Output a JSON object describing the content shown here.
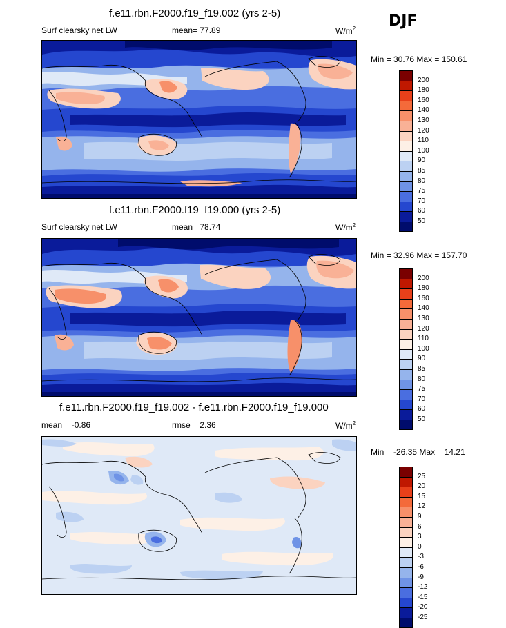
{
  "season": "DJF",
  "units_prefix": "W/m",
  "units_sup": "2",
  "panels": [
    {
      "title": "f.e11.rbn.F2000.f19_f19.002 (yrs 2-5)",
      "left_label": "Surf clearsky net LW",
      "center_label": "mean=  77.89",
      "minmax": "Min =  30.76 Max = 150.61",
      "kind": "field",
      "levels": [
        "200",
        "180",
        "160",
        "140",
        "130",
        "120",
        "110",
        "100",
        "90",
        "85",
        "80",
        "75",
        "70",
        "60",
        "50"
      ]
    },
    {
      "title": "f.e11.rbn.F2000.f19_f19.000 (yrs 2-5)",
      "left_label": "Surf clearsky net LW",
      "center_label": "mean=  78.74",
      "minmax": "Min =  32.96 Max = 157.70",
      "kind": "field",
      "levels": [
        "200",
        "180",
        "160",
        "140",
        "130",
        "120",
        "110",
        "100",
        "90",
        "85",
        "80",
        "75",
        "70",
        "60",
        "50"
      ]
    },
    {
      "title": "f.e11.rbn.F2000.f19_f19.002 - f.e11.rbn.F2000.f19_f19.000",
      "left_label": "mean =  -0.86",
      "center_label": "rmse =   2.36",
      "minmax": "Min = -26.35 Max =  14.21",
      "kind": "diff",
      "levels": [
        "25",
        "20",
        "15",
        "12",
        "9",
        "6",
        "3",
        "0",
        "-3",
        "-6",
        "-9",
        "-12",
        "-15",
        "-20",
        "-25"
      ]
    }
  ],
  "colors": {
    "field_scale": [
      "#7a0000",
      "#c01800",
      "#e8401a",
      "#f46a3a",
      "#f7906a",
      "#f9b196",
      "#fbd3c0",
      "#fdf0e6",
      "#dfe9f7",
      "#bcd1f2",
      "#95b4ec",
      "#6f93e6",
      "#4a6ee0",
      "#2547cf",
      "#0a1b9a",
      "#000c6c"
    ],
    "diff_scale": [
      "#7a0000",
      "#c01800",
      "#e8401a",
      "#f46a3a",
      "#f7906a",
      "#f9b196",
      "#fbd3c0",
      "#fdf0e6",
      "#dfe9f7",
      "#bcd1f2",
      "#95b4ec",
      "#6f93e6",
      "#4a6ee0",
      "#2547cf",
      "#0a1b9a",
      "#000c6c"
    ]
  }
}
